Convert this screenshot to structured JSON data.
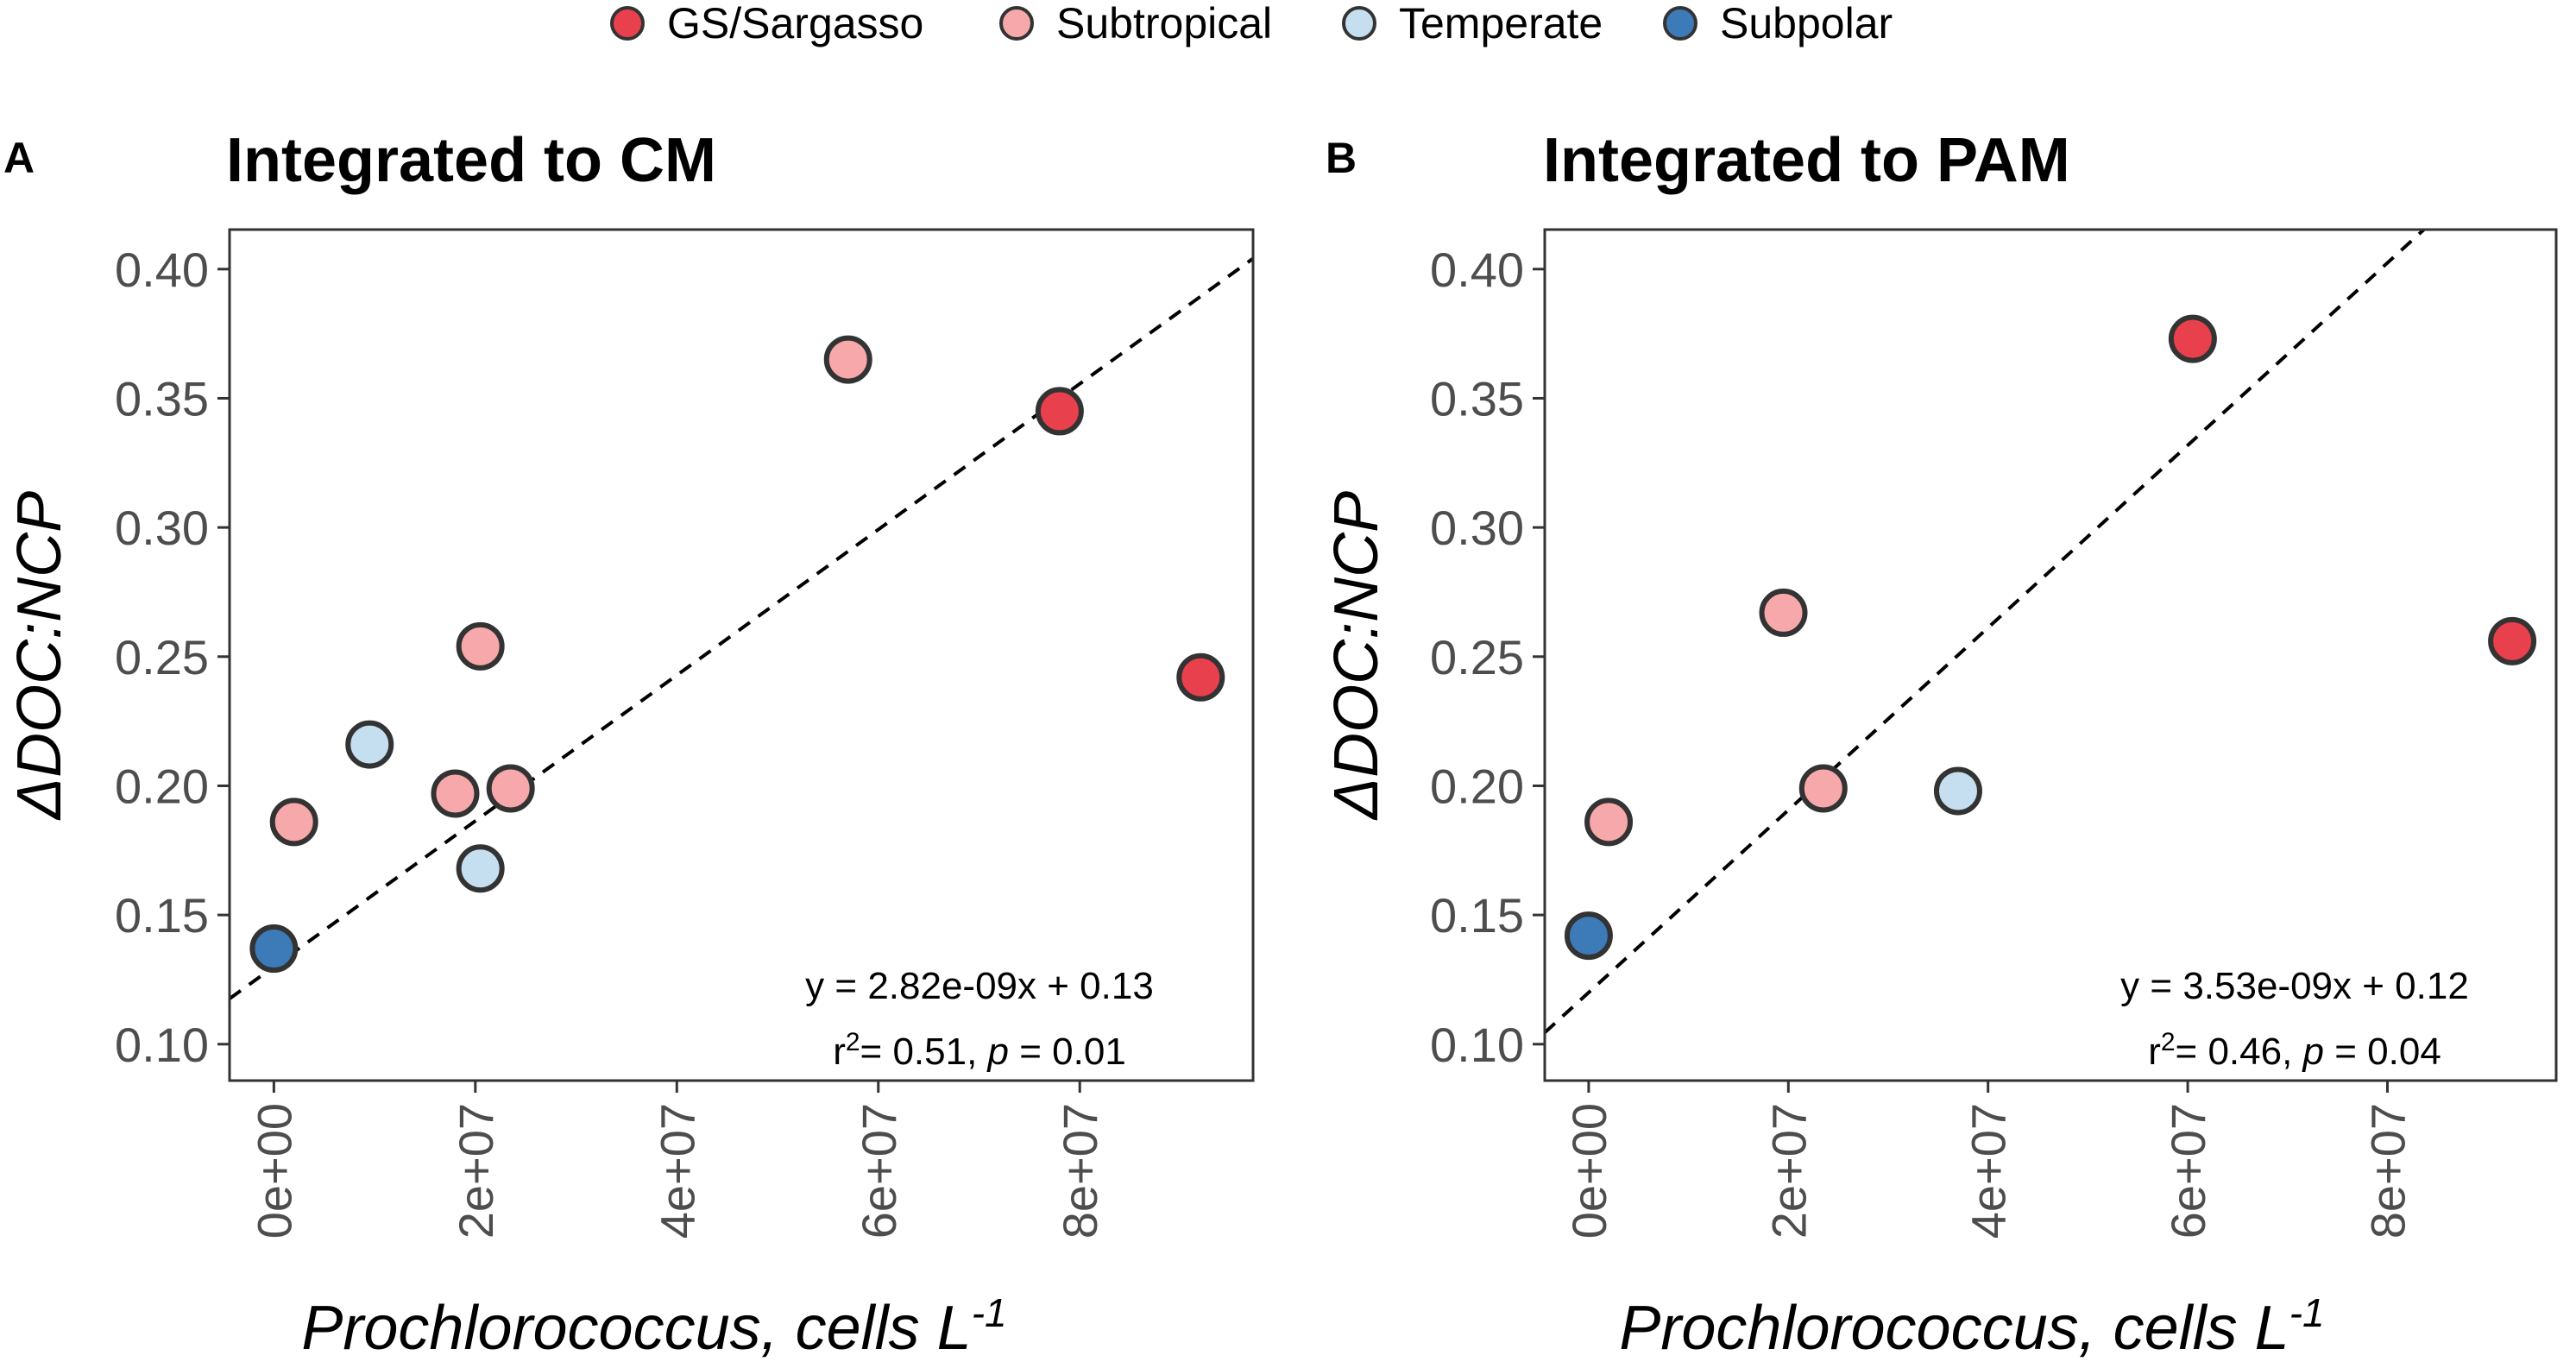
{
  "legend": {
    "items": [
      {
        "label": "GS/Sargasso",
        "color": "#e8404c"
      },
      {
        "label": "Subtropical",
        "color": "#f7a8aa"
      },
      {
        "label": "Temperate",
        "color": "#c6dff0"
      },
      {
        "label": "Subpolar",
        "color": "#3d7ab8"
      }
    ]
  },
  "chart_data": [
    {
      "type": "scatter",
      "panel_letter": "A",
      "title": "Integrated to CM",
      "xlabel": "Prochlorococcus, cells L",
      "xlabel_exponent": "-1",
      "ylabel": "ΔDOC:NCP",
      "x_ticks": [
        0,
        20000000,
        40000000,
        60000000,
        80000000
      ],
      "x_tick_labels": [
        "0e+00",
        "2e+07",
        "4e+07",
        "6e+07",
        "8e+07"
      ],
      "y_ticks": [
        0.1,
        0.15,
        0.2,
        0.25,
        0.3,
        0.35,
        0.4
      ],
      "y_tick_labels": [
        "0.10",
        "0.15",
        "0.20",
        "0.25",
        "0.30",
        "0.35",
        "0.40"
      ],
      "xlim": [
        -4400000,
        97200000
      ],
      "ylim": [
        0.0859,
        0.4153
      ],
      "grid": false,
      "fit": {
        "slope": 2.82e-09,
        "intercept": 0.13,
        "style": "dashed"
      },
      "equation": {
        "line1": "y = 2.82e-09x + 0.13",
        "r_prefix": "r",
        "r_exp": "2",
        "r_mid": "= 0.51, ",
        "p_label": "p",
        "p_value": " = 0.01"
      },
      "series": [
        {
          "name": "GS/Sargasso",
          "points": [
            {
              "x": 78000000,
              "y": 0.345
            },
            {
              "x": 92000000,
              "y": 0.242
            }
          ]
        },
        {
          "name": "Subtropical",
          "points": [
            {
              "x": 2000000,
              "y": 0.186
            },
            {
              "x": 18000000,
              "y": 0.197
            },
            {
              "x": 20500000,
              "y": 0.254
            },
            {
              "x": 23500000,
              "y": 0.199
            },
            {
              "x": 57000000,
              "y": 0.365
            }
          ]
        },
        {
          "name": "Temperate",
          "points": [
            {
              "x": 9500000,
              "y": 0.216
            },
            {
              "x": 20500000,
              "y": 0.168
            }
          ]
        },
        {
          "name": "Subpolar",
          "points": [
            {
              "x": 0,
              "y": 0.137
            }
          ]
        }
      ]
    },
    {
      "type": "scatter",
      "panel_letter": "B",
      "title": "Integrated to PAM",
      "xlabel": "Prochlorococcus, cells L",
      "xlabel_exponent": "-1",
      "ylabel": "ΔDOC:NCP",
      "x_ticks": [
        0,
        20000000,
        40000000,
        60000000,
        80000000
      ],
      "x_tick_labels": [
        "0e+00",
        "2e+07",
        "4e+07",
        "6e+07",
        "8e+07"
      ],
      "y_ticks": [
        0.1,
        0.15,
        0.2,
        0.25,
        0.3,
        0.35,
        0.4
      ],
      "y_tick_labels": [
        "0.10",
        "0.15",
        "0.20",
        "0.25",
        "0.30",
        "0.35",
        "0.40"
      ],
      "xlim": [
        -4400000,
        96900000
      ],
      "ylim": [
        0.0859,
        0.4153
      ],
      "grid": false,
      "fit": {
        "slope": 3.53e-09,
        "intercept": 0.12,
        "style": "dashed"
      },
      "equation": {
        "line1": "y = 3.53e-09x + 0.12",
        "r_prefix": "r",
        "r_exp": "2",
        "r_mid": "= 0.46, ",
        "p_label": "p",
        "p_value": " = 0.04"
      },
      "series": [
        {
          "name": "GS/Sargasso",
          "points": [
            {
              "x": 60500000,
              "y": 0.373
            },
            {
              "x": 92500000,
              "y": 0.256
            }
          ]
        },
        {
          "name": "Subtropical",
          "points": [
            {
              "x": 2000000,
              "y": 0.186
            },
            {
              "x": 19500000,
              "y": 0.267
            },
            {
              "x": 23500000,
              "y": 0.199
            }
          ]
        },
        {
          "name": "Temperate",
          "points": [
            {
              "x": 37000000,
              "y": 0.198
            }
          ]
        },
        {
          "name": "Subpolar",
          "points": [
            {
              "x": 0,
              "y": 0.142
            }
          ]
        }
      ]
    }
  ]
}
